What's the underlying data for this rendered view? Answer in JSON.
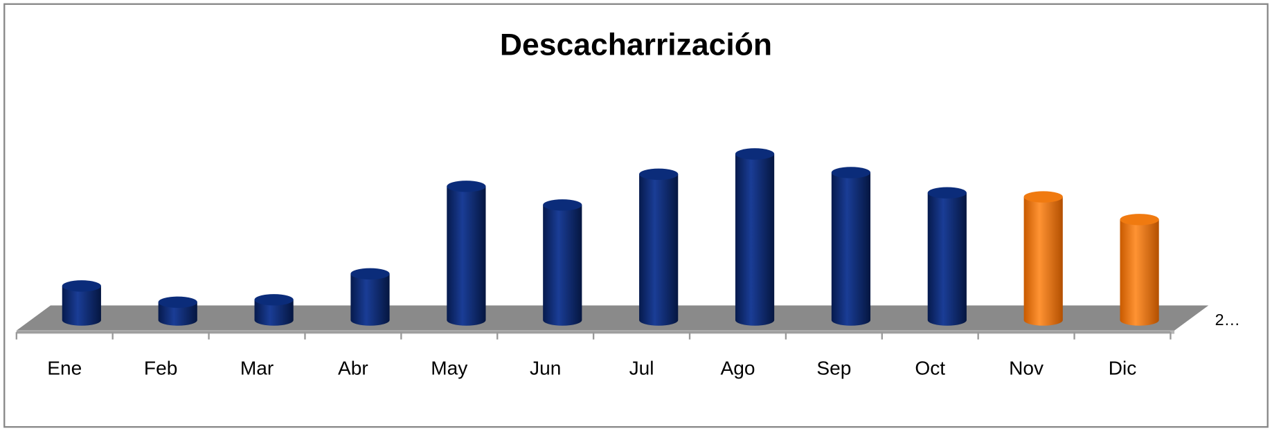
{
  "chart_data": {
    "type": "bar3d",
    "title": "Descacharrización",
    "categories": [
      "Ene",
      "Feb",
      "Mar",
      "Abr",
      "May",
      "Jun",
      "Jul",
      "Ago",
      "Sep",
      "Oct",
      "Nov",
      "Dic"
    ],
    "series": [
      {
        "name": "2…",
        "colors": [
          "#0b2c7a",
          "#0b2c7a",
          "#0b2c7a",
          "#0b2c7a",
          "#0b2c7a",
          "#0b2c7a",
          "#0b2c7a",
          "#0b2c7a",
          "#0b2c7a",
          "#0b2c7a",
          "#f07a10",
          "#f07a10"
        ],
        "values": [
          42,
          22,
          25,
          57,
          165,
          142,
          180,
          205,
          182,
          157,
          152,
          124
        ]
      }
    ],
    "ylim": [
      0,
      250
    ]
  }
}
